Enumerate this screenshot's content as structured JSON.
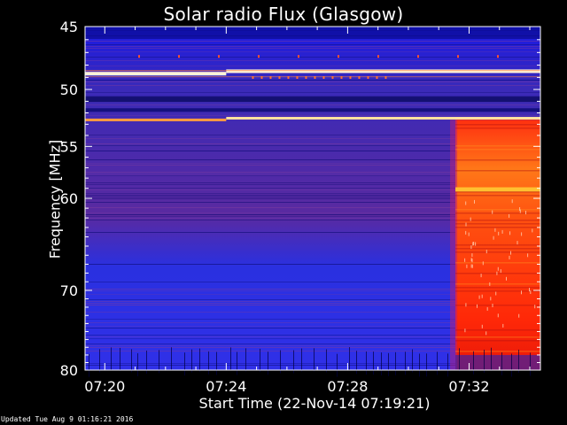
{
  "chart_data": {
    "type": "heatmap",
    "title": "Solar radio Flux (Glasgow)",
    "ylabel": "Frequency [MHz]",
    "xlabel": "Start Time (22-Nov-14 07:19:21)",
    "x_ticks": [
      "07:20",
      "07:24",
      "07:28",
      "07:32"
    ],
    "x_tick_minutes": [
      0.65,
      4.65,
      8.65,
      12.65
    ],
    "xlim_minutes": [
      0,
      15
    ],
    "y_ticks": [
      45,
      50,
      55,
      60,
      70,
      80
    ],
    "ylim": [
      45,
      80
    ],
    "y_scale": "log",
    "burst_start_minutes": 12.2,
    "colors": {
      "background": "#1a1adc",
      "mid_band": "#4a2aa8",
      "burst": "#ff4010",
      "burst_hot": "#ffb020",
      "line": "#ffffff"
    }
  },
  "footer": "Updated Tue Aug  9 01:16:21 2016"
}
